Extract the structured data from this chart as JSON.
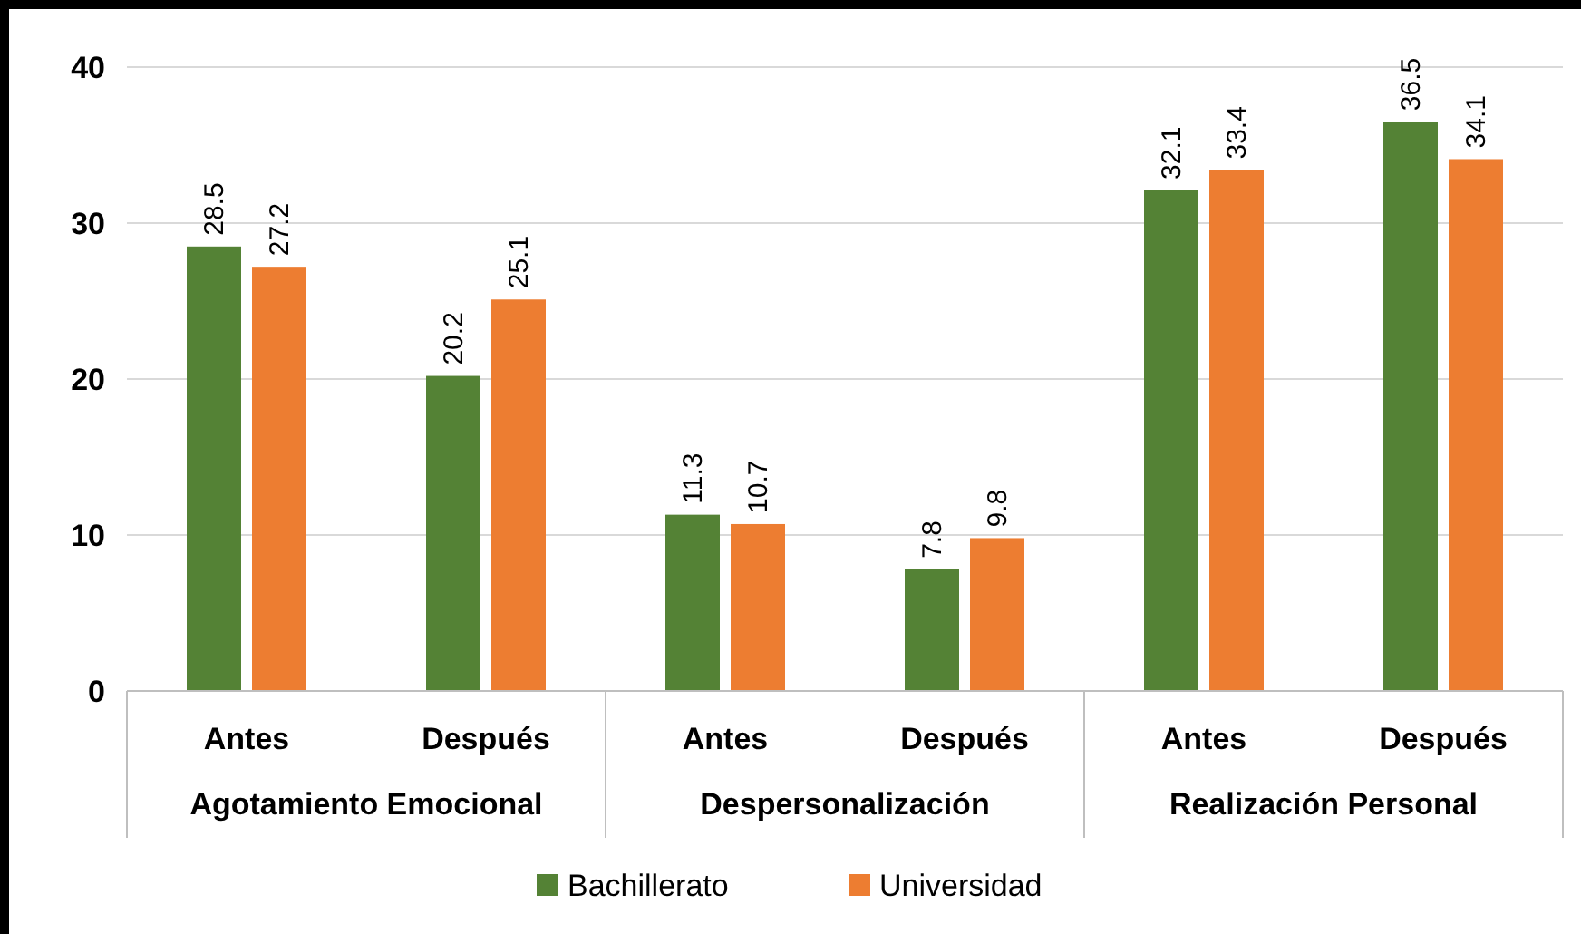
{
  "chart_data": {
    "type": "bar",
    "categories": [
      "Antes",
      "Después",
      "Antes",
      "Después",
      "Antes",
      "Después"
    ],
    "series": [
      {
        "name": "Bachillerato",
        "color": "#548235",
        "values": [
          28.5,
          20.2,
          11.3,
          7.8,
          32.1,
          36.5
        ]
      },
      {
        "name": "Universidad",
        "color": "#ed7d31",
        "values": [
          27.2,
          25.1,
          10.7,
          9.8,
          33.4,
          34.1
        ]
      }
    ],
    "annotations": [
      "Agotamiento Emocional",
      "Despersonalización",
      "Realización Personal"
    ],
    "ylim": [
      0,
      40
    ],
    "yticks": [
      0,
      10,
      20,
      30,
      40
    ],
    "grid": "y",
    "legend": "bottom",
    "data_labels": true
  }
}
